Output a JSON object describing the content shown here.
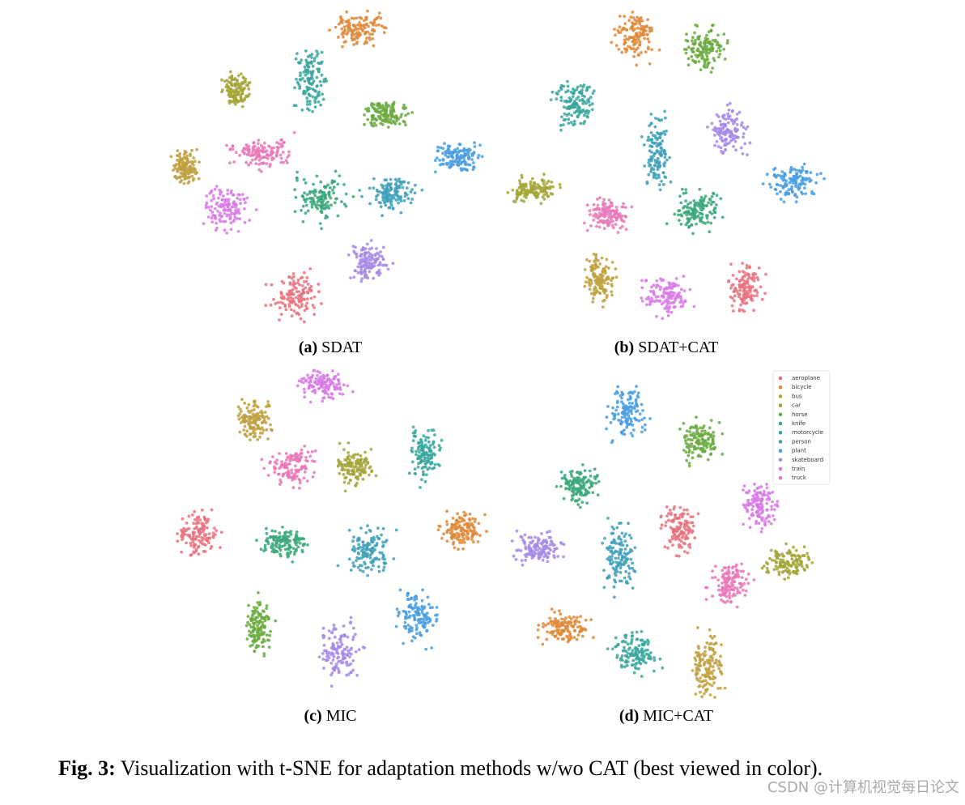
{
  "panels": [
    {
      "label": "(a)",
      "name": "SDAT"
    },
    {
      "label": "(b)",
      "name": "SDAT+CAT"
    },
    {
      "label": "(c)",
      "name": "MIC"
    },
    {
      "label": "(d)",
      "name": "MIC+CAT"
    }
  ],
  "legend": [
    {
      "name": "aeroplane",
      "color": "#e8737f"
    },
    {
      "name": "bicycle",
      "color": "#de8a3a"
    },
    {
      "name": "bus",
      "color": "#c0a040"
    },
    {
      "name": "car",
      "color": "#a3a638"
    },
    {
      "name": "horse",
      "color": "#6aaa40"
    },
    {
      "name": "knife",
      "color": "#3aa87a"
    },
    {
      "name": "motorcycle",
      "color": "#3aa69c"
    },
    {
      "name": "person",
      "color": "#3ea0b8"
    },
    {
      "name": "plant",
      "color": "#4a9ee0"
    },
    {
      "name": "skateboard",
      "color": "#a68ae6"
    },
    {
      "name": "train",
      "color": "#d87ae6"
    },
    {
      "name": "truck",
      "color": "#e878b8"
    }
  ],
  "caption": {
    "label": "Fig. 3:",
    "text": "Visualization with t-SNE for adaptation methods w/wo CAT (best viewed in color)."
  },
  "watermark": "CSDN @计算机视觉每日论文"
}
